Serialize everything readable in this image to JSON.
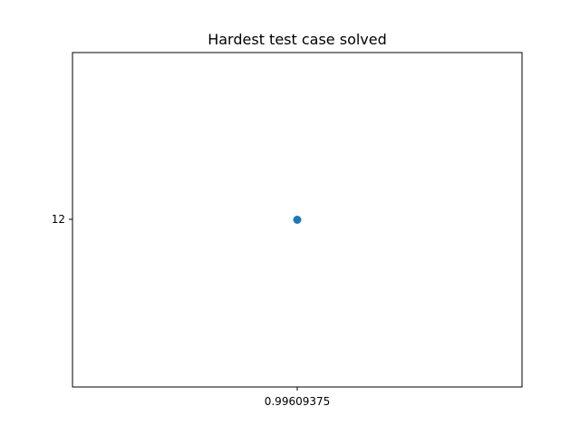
{
  "chart_data": {
    "type": "scatter",
    "title": "Hardest test case solved",
    "xlabel": "",
    "ylabel": "",
    "x_ticks": [
      "0.99609375"
    ],
    "y_ticks": [
      "12"
    ],
    "series": [
      {
        "color": "#1f77b4",
        "points": [
          {
            "x": 0.99609375,
            "y": 12
          }
        ]
      }
    ],
    "grid": false,
    "legend": "none"
  }
}
